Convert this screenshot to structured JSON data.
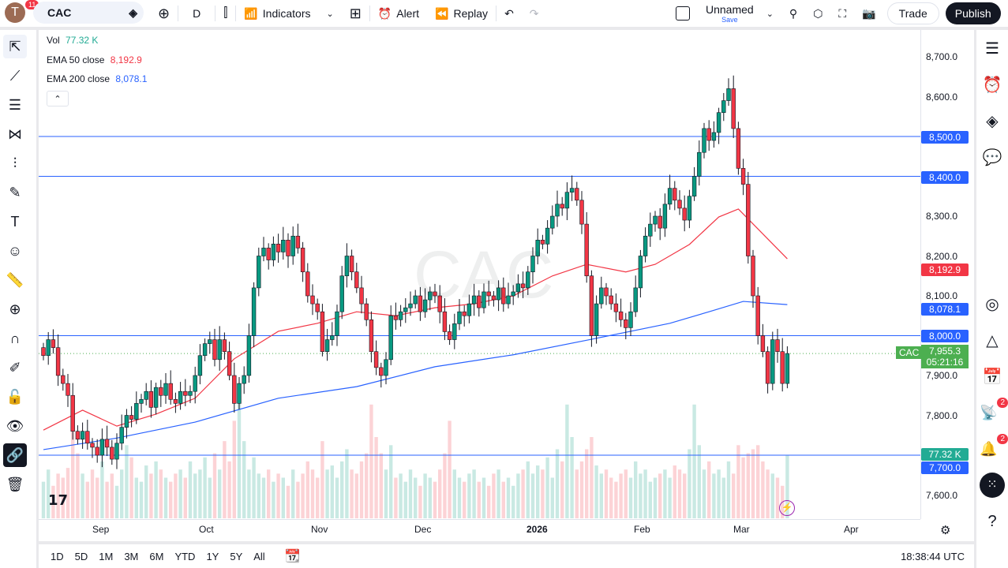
{
  "topbar": {
    "avatar_letter": "T",
    "notifications": "11",
    "symbol": "CAC",
    "interval": "D",
    "indicators": "Indicators",
    "alert": "Alert",
    "replay": "Replay",
    "layout_name": "Unnamed",
    "layout_status": "Save",
    "trade": "Trade",
    "publish": "Publish"
  },
  "legend": {
    "vol_label": "Vol",
    "vol_value": "77.32 K",
    "ema50_label": "EMA 50 close",
    "ema50_value": "8,192.9",
    "ema200_label": "EMA 200 close",
    "ema200_value": "8,078.1"
  },
  "watermark": "CAC",
  "price_labels": {
    "symbol_tag": "CAC",
    "last": "7,955.3",
    "countdown": "05:21:16",
    "ema50": "8,192.9",
    "ema200": "8,078.1",
    "vol": "77.32 K",
    "line_8500": "8,500.0",
    "line_8400": "8,400.0",
    "line_8000": "8,000.0",
    "line_7700": "7,700.0"
  },
  "right_sidebar": {
    "ideas_badge": "2",
    "alerts_badge": "2"
  },
  "bottom": {
    "ranges": [
      "1D",
      "5D",
      "1M",
      "3M",
      "6M",
      "YTD",
      "1Y",
      "5Y",
      "All"
    ],
    "clock": "18:38:44 UTC"
  },
  "colors": {
    "up": "#089981",
    "down": "#f23645",
    "ema50": "#f23645",
    "ema200": "#2962ff",
    "hline": "#2962ff"
  },
  "chart_data": {
    "type": "candlestick",
    "symbol": "CAC",
    "interval": "D",
    "y_ticks": [
      8700,
      8600,
      8500,
      8400,
      8300,
      8200,
      8100,
      8000,
      7900,
      7800,
      7600
    ],
    "y_tick_labels": [
      "8,700.0",
      "8,600.0",
      "8,500.0",
      "8,400.0",
      "8,300.0",
      "8,200.0",
      "8,100.0",
      "8,000.0",
      "7,900.0",
      "7,800.0",
      "7,600.0"
    ],
    "x_tick_labels": [
      "Sep",
      "Oct",
      "Nov",
      "Dec",
      "2026",
      "Feb",
      "Mar",
      "Apr"
    ],
    "ylim": [
      7540,
      8760
    ],
    "horizontal_lines": [
      8500,
      8400,
      8000,
      7700
    ],
    "closes": [
      7950,
      7990,
      7970,
      7900,
      7880,
      7850,
      7760,
      7740,
      7760,
      7730,
      7720,
      7700,
      7740,
      7720,
      7690,
      7730,
      7770,
      7800,
      7790,
      7830,
      7840,
      7860,
      7820,
      7870,
      7850,
      7880,
      7840,
      7830,
      7860,
      7850,
      7860,
      7900,
      7950,
      7980,
      7990,
      7940,
      7990,
      7960,
      7900,
      7830,
      7880,
      7900,
      8000,
      8120,
      8200,
      8220,
      8190,
      8230,
      8210,
      8240,
      8200,
      8250,
      8220,
      8160,
      8100,
      8080,
      8060,
      7960,
      7990,
      8000,
      8060,
      8150,
      8200,
      8160,
      8120,
      8080,
      8040,
      7960,
      7920,
      7900,
      7940,
      8050,
      8040,
      8060,
      8070,
      8080,
      8100,
      8060,
      8090,
      8110,
      8100,
      8060,
      8010,
      7990,
      8030,
      8060,
      8050,
      8080,
      8100,
      8070,
      8110,
      8100,
      8090,
      8120,
      8080,
      8100,
      8110,
      8130,
      8120,
      8160,
      8200,
      8240,
      8230,
      8270,
      8300,
      8330,
      8320,
      8360,
      8370,
      8340,
      8280,
      8150,
      8000,
      8080,
      8120,
      8100,
      8080,
      8060,
      8040,
      8020,
      8060,
      8120,
      8200,
      8250,
      8280,
      8300,
      8270,
      8330,
      8370,
      8340,
      8320,
      8290,
      8350,
      8400,
      8460,
      8520,
      8490,
      8510,
      8560,
      8590,
      8620,
      8520,
      8420,
      8380,
      8200,
      8100,
      8000,
      7960,
      7880,
      7990,
      7960,
      7880,
      7955.3
    ],
    "volume_k": [
      45,
      60,
      40,
      55,
      50,
      62,
      140,
      80,
      55,
      45,
      60,
      50,
      70,
      45,
      55,
      40,
      60,
      90,
      75,
      50,
      45,
      65,
      55,
      70,
      60,
      50,
      45,
      55,
      60,
      50,
      70,
      55,
      60,
      75,
      50,
      80,
      60,
      95,
      70,
      120,
      150,
      95,
      60,
      75,
      55,
      50,
      60,
      45,
      55,
      50,
      40,
      60,
      45,
      55,
      70,
      60,
      50,
      95,
      60,
      65,
      50,
      70,
      85,
      60,
      55,
      70,
      80,
      140,
      100,
      80,
      60,
      90,
      50,
      55,
      45,
      60,
      50,
      40,
      55,
      50,
      45,
      60,
      80,
      120,
      60,
      50,
      45,
      55,
      60,
      45,
      50,
      40,
      55,
      60,
      45,
      50,
      40,
      55,
      60,
      70,
      55,
      65,
      60,
      75,
      50,
      85,
      70,
      140,
      100,
      60,
      70,
      85,
      100,
      65,
      55,
      60,
      50,
      45,
      55,
      60,
      50,
      70,
      55,
      60,
      45,
      50,
      55,
      60,
      50,
      65,
      60,
      55,
      85,
      140,
      90,
      60,
      70,
      55,
      60,
      50,
      70,
      55,
      90,
      75,
      80,
      85,
      90,
      70,
      60,
      55,
      50,
      40,
      77.32
    ],
    "ema50": [
      [
        0,
        7763
      ],
      [
        8,
        7813
      ],
      [
        15,
        7773
      ],
      [
        23,
        7803
      ],
      [
        31,
        7843
      ],
      [
        39,
        7942
      ],
      [
        48,
        8011
      ],
      [
        56,
        8031
      ],
      [
        64,
        8060
      ],
      [
        72,
        8050
      ],
      [
        80,
        8070
      ],
      [
        88,
        8080
      ],
      [
        96,
        8100
      ],
      [
        104,
        8150
      ],
      [
        111,
        8179
      ],
      [
        119,
        8160
      ],
      [
        125,
        8179
      ],
      [
        132,
        8229
      ],
      [
        138,
        8298
      ],
      [
        142,
        8318
      ],
      [
        146,
        8268
      ],
      [
        152,
        8193
      ]
    ],
    "ema200": [
      [
        0,
        7714
      ],
      [
        15,
        7743
      ],
      [
        31,
        7783
      ],
      [
        48,
        7843
      ],
      [
        64,
        7872
      ],
      [
        80,
        7922
      ],
      [
        96,
        7952
      ],
      [
        112,
        7991
      ],
      [
        128,
        8031
      ],
      [
        136,
        8060
      ],
      [
        143,
        8086
      ],
      [
        152,
        8078
      ]
    ]
  }
}
